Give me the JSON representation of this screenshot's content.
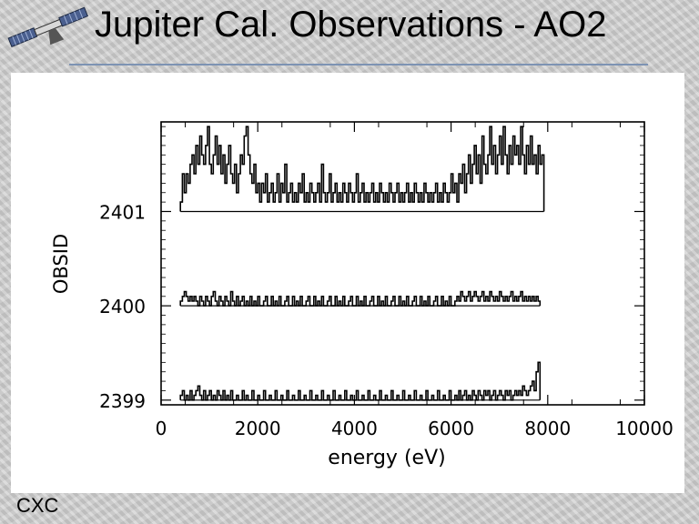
{
  "page": {
    "title": "Jupiter Cal. Observations - AO2",
    "footer": "CXC",
    "logo_icon": "satellite-icon"
  },
  "chart_data": {
    "type": "line",
    "xlabel": "energy (eV)",
    "ylabel": "OBSID",
    "xlim": [
      0,
      10000
    ],
    "ylim": [
      2398.95,
      2401.95
    ],
    "x_ticks": [
      0,
      2000,
      4000,
      6000,
      8000,
      10000
    ],
    "x_tick_labels": [
      "0",
      "2000",
      "4000",
      "6000",
      "8000",
      "10000"
    ],
    "y_ticks": [
      2399,
      2400,
      2401
    ],
    "y_tick_labels": [
      "2399",
      "2400",
      "2401"
    ],
    "grid": false,
    "x_start": 400,
    "x_step": 40,
    "series": [
      {
        "baseline": 2401,
        "values": [
          0.1,
          0.4,
          0.2,
          0.4,
          0.3,
          0.5,
          0.6,
          0.4,
          0.7,
          0.5,
          0.8,
          0.6,
          0.5,
          0.7,
          0.9,
          0.5,
          0.4,
          0.6,
          0.8,
          0.5,
          0.7,
          0.4,
          0.6,
          0.3,
          0.5,
          0.7,
          0.4,
          0.3,
          0.5,
          0.2,
          0.4,
          0.6,
          0.5,
          0.8,
          0.9,
          0.6,
          0.4,
          0.3,
          0.5,
          0.2,
          0.3,
          0.1,
          0.3,
          0.2,
          0.4,
          0.1,
          0.2,
          0.3,
          0.1,
          0.2,
          0.4,
          0.1,
          0.3,
          0.2,
          0.5,
          0.1,
          0.2,
          0.3,
          0.1,
          0.2,
          0.1,
          0.3,
          0.2,
          0.4,
          0.1,
          0.2,
          0.1,
          0.3,
          0.2,
          0.1,
          0.2,
          0.3,
          0.1,
          0.5,
          0.2,
          0.1,
          0.2,
          0.4,
          0.1,
          0.2,
          0.3,
          0.1,
          0.2,
          0.1,
          0.3,
          0.2,
          0.1,
          0.3,
          0.2,
          0.1,
          0.2,
          0.4,
          0.1,
          0.2,
          0.3,
          0.1,
          0.2,
          0.1,
          0.2,
          0.3,
          0.1,
          0.2,
          0.1,
          0.3,
          0.2,
          0.1,
          0.2,
          0.1,
          0.3,
          0.2,
          0.1,
          0.2,
          0.3,
          0.1,
          0.2,
          0.1,
          0.2,
          0.3,
          0.1,
          0.2,
          0.1,
          0.3,
          0.2,
          0.1,
          0.2,
          0.1,
          0.3,
          0.2,
          0.1,
          0.2,
          0.1,
          0.2,
          0.3,
          0.1,
          0.2,
          0.1,
          0.3,
          0.2,
          0.1,
          0.2,
          0.4,
          0.2,
          0.3,
          0.1,
          0.4,
          0.3,
          0.5,
          0.2,
          0.4,
          0.6,
          0.3,
          0.5,
          0.7,
          0.4,
          0.6,
          0.3,
          0.8,
          0.5,
          0.4,
          0.6,
          0.9,
          0.5,
          0.7,
          0.4,
          0.6,
          0.8,
          0.5,
          0.9,
          0.6,
          0.4,
          0.7,
          0.5,
          0.8,
          0.6,
          0.7,
          0.5,
          0.9,
          0.6,
          0.4,
          0.7,
          0.5,
          0.8,
          0.5,
          0.6,
          0.4,
          0.7,
          0.5,
          0.6
        ]
      },
      {
        "baseline": 2400,
        "values": [
          0.05,
          0.1,
          0.15,
          0.1,
          0.05,
          0.1,
          0.05,
          0.1,
          0.05,
          0.0,
          0.1,
          0.05,
          0.0,
          0.1,
          0.05,
          0.0,
          0.1,
          0.15,
          0.05,
          0.0,
          0.1,
          0.05,
          0.0,
          0.1,
          0.05,
          0.0,
          0.15,
          0.05,
          0.0,
          0.1,
          0.0,
          0.05,
          0.1,
          0.0,
          0.05,
          0.0,
          0.1,
          0.0,
          0.05,
          0.0,
          0.1,
          0.0,
          0.0,
          0.05,
          0.1,
          0.0,
          0.0,
          0.1,
          0.0,
          0.05,
          0.0,
          0.1,
          0.0,
          0.0,
          0.05,
          0.1,
          0.0,
          0.0,
          0.1,
          0.0,
          0.05,
          0.0,
          0.1,
          0.0,
          0.0,
          0.05,
          0.1,
          0.0,
          0.0,
          0.1,
          0.0,
          0.05,
          0.0,
          0.1,
          0.0,
          0.0,
          0.05,
          0.1,
          0.0,
          0.0,
          0.1,
          0.0,
          0.05,
          0.0,
          0.1,
          0.0,
          0.0,
          0.05,
          0.1,
          0.0,
          0.0,
          0.1,
          0.0,
          0.05,
          0.0,
          0.1,
          0.0,
          0.0,
          0.05,
          0.1,
          0.0,
          0.0,
          0.1,
          0.0,
          0.05,
          0.0,
          0.1,
          0.0,
          0.0,
          0.05,
          0.1,
          0.0,
          0.0,
          0.1,
          0.0,
          0.05,
          0.0,
          0.1,
          0.0,
          0.0,
          0.05,
          0.1,
          0.0,
          0.0,
          0.1,
          0.0,
          0.05,
          0.0,
          0.1,
          0.0,
          0.0,
          0.05,
          0.1,
          0.0,
          0.0,
          0.1,
          0.0,
          0.05,
          0.0,
          0.1,
          0.0,
          0.0,
          0.05,
          0.1,
          0.05,
          0.15,
          0.1,
          0.05,
          0.1,
          0.15,
          0.05,
          0.1,
          0.15,
          0.1,
          0.05,
          0.1,
          0.15,
          0.05,
          0.1,
          0.05,
          0.15,
          0.1,
          0.05,
          0.1,
          0.05,
          0.15,
          0.1,
          0.05,
          0.1,
          0.05,
          0.1,
          0.15,
          0.05,
          0.1,
          0.05,
          0.1,
          0.15,
          0.05,
          0.1,
          0.05,
          0.1,
          0.05,
          0.1,
          0.05,
          0.1,
          0.05
        ]
      },
      {
        "baseline": 2399,
        "values": [
          0.05,
          0.1,
          0.0,
          0.05,
          0.0,
          0.1,
          0.0,
          0.05,
          0.1,
          0.15,
          0.05,
          0.0,
          0.1,
          0.0,
          0.05,
          0.1,
          0.0,
          0.05,
          0.0,
          0.1,
          0.05,
          0.0,
          0.1,
          0.0,
          0.05,
          0.0,
          0.1,
          0.0,
          0.0,
          0.05,
          0.0,
          0.0,
          0.1,
          0.0,
          0.05,
          0.0,
          0.0,
          0.1,
          0.0,
          0.0,
          0.05,
          0.0,
          0.0,
          0.1,
          0.0,
          0.0,
          0.05,
          0.0,
          0.0,
          0.1,
          0.0,
          0.0,
          0.05,
          0.0,
          0.0,
          0.1,
          0.0,
          0.0,
          0.05,
          0.0,
          0.0,
          0.1,
          0.0,
          0.0,
          0.05,
          0.0,
          0.0,
          0.1,
          0.0,
          0.0,
          0.05,
          0.0,
          0.0,
          0.1,
          0.0,
          0.0,
          0.05,
          0.0,
          0.0,
          0.1,
          0.0,
          0.0,
          0.05,
          0.0,
          0.0,
          0.1,
          0.0,
          0.0,
          0.05,
          0.0,
          0.0,
          0.1,
          0.0,
          0.0,
          0.05,
          0.0,
          0.0,
          0.1,
          0.0,
          0.0,
          0.05,
          0.0,
          0.0,
          0.1,
          0.0,
          0.0,
          0.05,
          0.0,
          0.0,
          0.1,
          0.0,
          0.0,
          0.05,
          0.0,
          0.0,
          0.1,
          0.0,
          0.0,
          0.05,
          0.0,
          0.0,
          0.1,
          0.0,
          0.0,
          0.05,
          0.0,
          0.0,
          0.1,
          0.0,
          0.0,
          0.05,
          0.0,
          0.0,
          0.1,
          0.0,
          0.0,
          0.05,
          0.0,
          0.0,
          0.1,
          0.0,
          0.0,
          0.05,
          0.0,
          0.1,
          0.0,
          0.05,
          0.1,
          0.0,
          0.05,
          0.0,
          0.1,
          0.05,
          0.0,
          0.1,
          0.05,
          0.0,
          0.1,
          0.05,
          0.1,
          0.0,
          0.05,
          0.1,
          0.0,
          0.05,
          0.1,
          0.05,
          0.0,
          0.1,
          0.05,
          0.1,
          0.0,
          0.05,
          0.1,
          0.05,
          0.1,
          0.05,
          0.15,
          0.1,
          0.05,
          0.1,
          0.15,
          0.2,
          0.1,
          0.3,
          0.4
        ]
      }
    ]
  }
}
